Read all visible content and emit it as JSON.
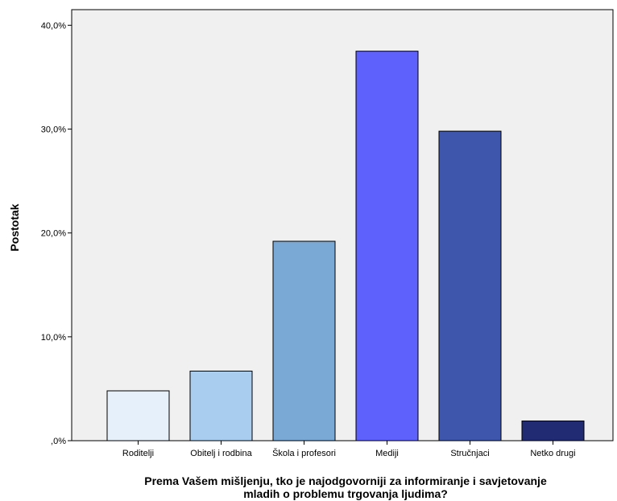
{
  "chart_data": {
    "type": "bar",
    "categories": [
      "Roditelji",
      "Obitelj i rodbina",
      "Škola i profesori",
      "Mediji",
      "Stručnjaci",
      "Netko drugi"
    ],
    "values": [
      4.8,
      6.7,
      19.2,
      37.5,
      29.8,
      1.9
    ],
    "colors": [
      "#e6f0fb",
      "#a9cdee",
      "#7ba9d6",
      "#5f61fd",
      "#3e56ac",
      "#212b74"
    ],
    "ylim": [
      0,
      41.5
    ],
    "yticks": [
      0,
      10,
      20,
      30,
      40
    ],
    "ytick_labels": [
      ",0%",
      "10,0%",
      "20,0%",
      "30,0%",
      "40,0%"
    ],
    "ylabel": "Postotak",
    "xlabel_lines": [
      "Prema Vašem mišljenju, tko je najodgovorniji za informiranje i savjetovanje",
      "mladih o problemu trgovanja ljudima?"
    ],
    "grid": false,
    "plot_background": "#f0f0f0"
  }
}
